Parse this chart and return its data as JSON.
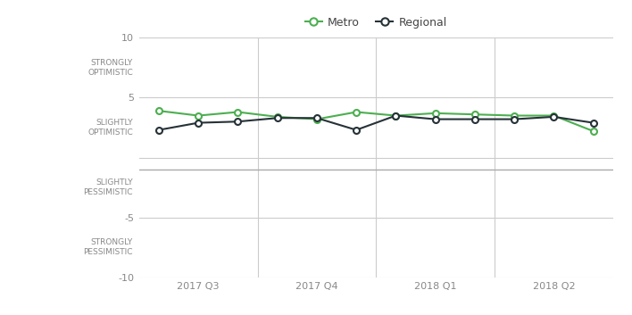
{
  "x_positions": [
    0,
    1,
    2,
    3,
    4,
    5,
    6,
    7,
    8,
    9,
    10,
    11
  ],
  "metro_values": [
    3.9,
    3.5,
    3.8,
    3.4,
    3.2,
    3.8,
    3.5,
    3.7,
    3.6,
    3.5,
    3.5,
    2.2
  ],
  "regional_values": [
    2.3,
    2.9,
    3.0,
    3.3,
    3.3,
    2.3,
    3.5,
    3.2,
    3.2,
    3.2,
    3.4,
    2.9
  ],
  "x_tick_positions": [
    1,
    4,
    7,
    10
  ],
  "x_tick_labels": [
    "2017 Q3",
    "2017 Q4",
    "2018 Q1",
    "2018 Q2"
  ],
  "vline_positions": [
    2.5,
    5.5,
    8.5
  ],
  "ylim": [
    -10,
    10
  ],
  "yticks": [
    -10,
    -5,
    0,
    5,
    10
  ],
  "ytick_labels": [
    "-10",
    "-5",
    "",
    "5",
    "10"
  ],
  "ylabel_annotations": [
    {
      "y": 7.5,
      "text": "STRONGLY\nOPTIMISTIC"
    },
    {
      "y": 2.5,
      "text": "SLIGHTLY\nOPTIMISTIC"
    },
    {
      "y": -2.5,
      "text": "SLIGHTLY\nPESSIMISTIC"
    },
    {
      "y": -7.5,
      "text": "STRONGLY\nPESSIMISTIC"
    }
  ],
  "hline_y": -1.0,
  "metro_color": "#4caf50",
  "regional_color": "#263238",
  "grid_color": "#cccccc",
  "bg_color": "#ffffff",
  "legend_metro": "Metro",
  "legend_regional": "Regional",
  "marker_size": 5,
  "linewidth": 1.5,
  "annotation_fontsize": 6.5,
  "tick_fontsize": 8,
  "legend_fontsize": 9
}
